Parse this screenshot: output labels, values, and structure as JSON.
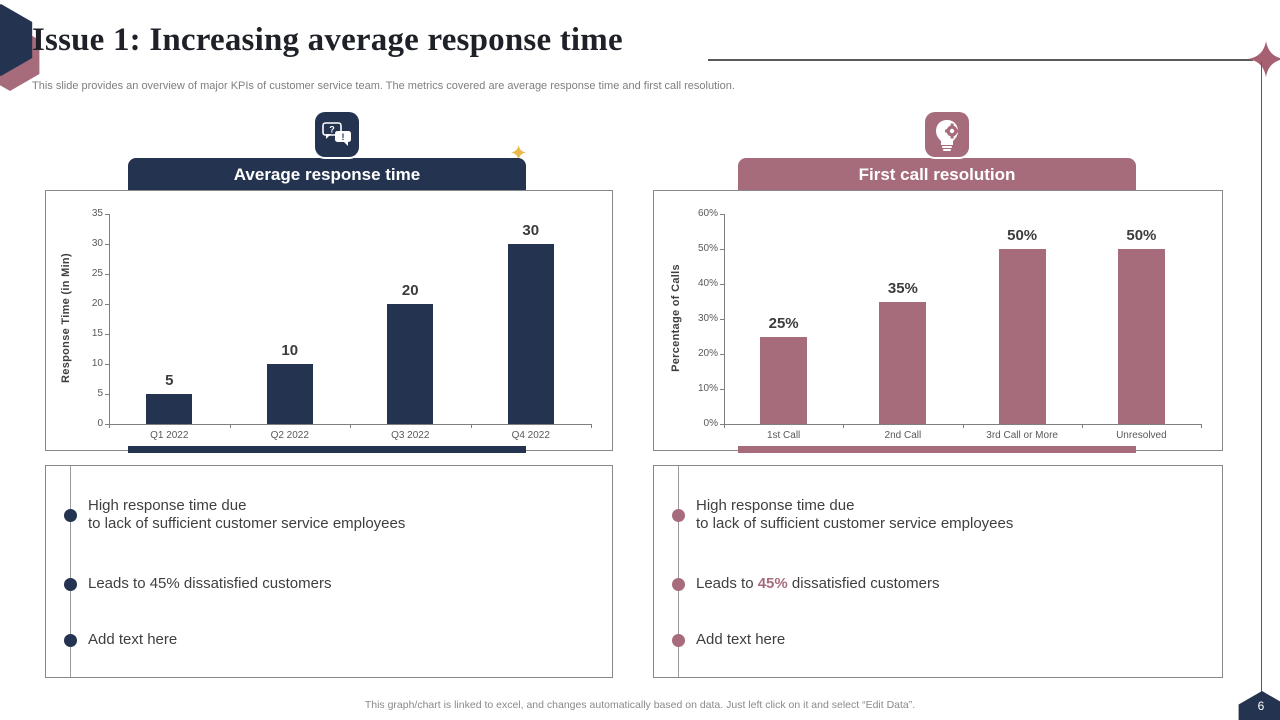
{
  "slide": {
    "title": "Issue 1: Increasing average response time",
    "subtitle": "This slide provides an overview of major KPIs of customer service team. The metrics covered are average response time and first call resolution.",
    "footer": "This graph/chart is linked to excel,  and changes automatically based on data. Just left click on it and select “Edit Data”.",
    "page_number": "6"
  },
  "colors": {
    "navy": "#24334F",
    "mauve": "#A76C7C",
    "gold_sparkle": "#E9B949",
    "axis": "#7f7f7f",
    "tick_text": "#595959"
  },
  "panels": [
    {
      "header": "Average response time",
      "accent": "#24334F",
      "icon": "chat-question-answer-icon",
      "bullets": [
        {
          "lines": [
            [
              {
                "text": "High response time due"
              }
            ],
            [
              {
                "text": "to lack of sufficient customer service employees"
              }
            ]
          ],
          "placeholder": false
        },
        {
          "lines": [
            [
              {
                "text": "Leads to 45% dissatisfied customers"
              }
            ]
          ],
          "placeholder": false
        },
        {
          "lines": [
            [
              {
                "text": "Add text here"
              }
            ]
          ],
          "placeholder": true
        }
      ]
    },
    {
      "header": "First call resolution",
      "accent": "#A76C7C",
      "icon": "idea-bulb-gear-icon",
      "bullets": [
        {
          "lines": [
            [
              {
                "text": "High response time due"
              }
            ],
            [
              {
                "text": "to lack of sufficient customer service employees"
              }
            ]
          ],
          "placeholder": false
        },
        {
          "lines": [
            [
              {
                "text": "Leads to "
              },
              {
                "text": "45%",
                "accent": true
              },
              {
                "text": " dissatisfied customers"
              }
            ]
          ],
          "placeholder": false
        },
        {
          "lines": [
            [
              {
                "text": "Add text here"
              }
            ]
          ],
          "placeholder": true
        }
      ]
    }
  ],
  "chart_data": [
    {
      "type": "bar",
      "title": "Average response time",
      "categories": [
        "Q1 2022",
        "Q2 2022",
        "Q3 2022",
        "Q4 2022"
      ],
      "values": [
        5,
        10,
        20,
        30
      ],
      "data_labels": [
        "5",
        "10",
        "20",
        "30"
      ],
      "xlabel": "",
      "ylabel": "Response Time (in Min)",
      "ylim": [
        0,
        35
      ],
      "ytick_step": 5,
      "ytick_labels": [
        "0",
        "5",
        "10",
        "15",
        "20",
        "25",
        "30",
        "35"
      ],
      "bar_color": "#24334F",
      "grid": false,
      "legend": "none"
    },
    {
      "type": "bar",
      "title": "First call resolution",
      "categories": [
        "1st Call",
        "2nd Call",
        "3rd Call or More",
        "Unresolved"
      ],
      "values": [
        25,
        35,
        50,
        50
      ],
      "data_labels": [
        "25%",
        "35%",
        "50%",
        "50%"
      ],
      "xlabel": "",
      "ylabel": "Percentage of Calls",
      "ylim": [
        0,
        60
      ],
      "ytick_step": 10,
      "ytick_labels": [
        "0%",
        "10%",
        "20%",
        "30%",
        "40%",
        "50%",
        "60%"
      ],
      "bar_color": "#A76C7C",
      "grid": false,
      "legend": "none"
    }
  ]
}
